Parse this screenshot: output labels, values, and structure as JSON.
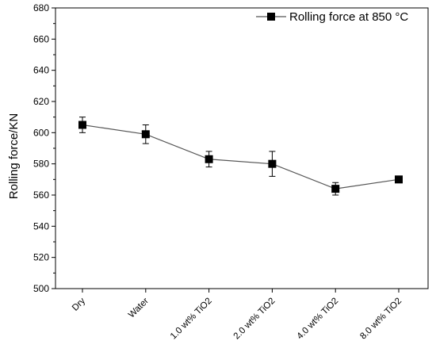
{
  "chart_data": {
    "type": "line",
    "title": "",
    "xlabel": "",
    "ylabel": "Rolling force/KN",
    "ylim": [
      500,
      680
    ],
    "yticks": [
      500,
      520,
      540,
      560,
      580,
      600,
      620,
      640,
      660,
      680
    ],
    "categories": [
      "Dry",
      "Water",
      "1.0 wt% TiO2",
      "2.0 wt% TiO2",
      "4.0 wt% TiO2",
      "8.0 wt% TiO2"
    ],
    "series": [
      {
        "name": "Rolling force at 850 °C",
        "values": [
          605,
          599,
          583,
          580,
          564,
          570
        ],
        "errors": [
          5,
          6,
          5,
          8,
          4,
          2
        ],
        "marker": "square",
        "color": "#000000",
        "line_color": "#555555"
      }
    ],
    "legend": {
      "position": "top-right",
      "label": "Rolling force at 850 °C"
    },
    "grid": false
  }
}
